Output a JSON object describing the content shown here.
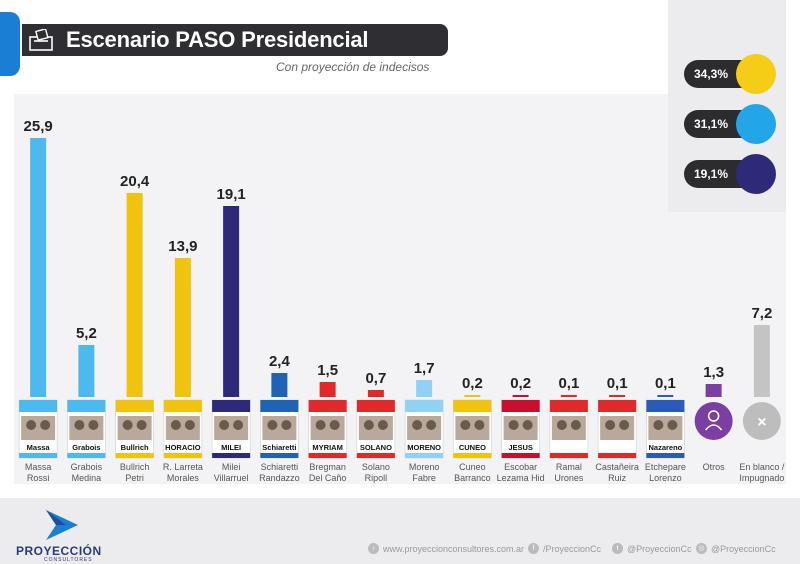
{
  "title": "Escenario PASO Presidencial",
  "subtitle": "Con proyección de indecisos",
  "summary": [
    {
      "value": "34,3%",
      "color": "#f5cc16",
      "logo": "jxc-logo"
    },
    {
      "value": "31,1%",
      "color": "#23a6e8",
      "logo": "up-logo"
    },
    {
      "value": "19,1%",
      "color": "#2d2a7a",
      "logo": "lla-logo"
    }
  ],
  "chart_data": {
    "type": "bar",
    "categories": [
      [
        "Massa",
        "Rossi"
      ],
      [
        "Grabois",
        "Medina"
      ],
      [
        "Bullrich",
        "Petri"
      ],
      [
        "R. Larreta",
        "Morales"
      ],
      [
        "Milei",
        "Villarruel"
      ],
      [
        "Schiaretti",
        "Randazzo"
      ],
      [
        "Bregman",
        "Del Caño"
      ],
      [
        "Solano",
        "Ripoll"
      ],
      [
        "Moreno",
        "Fabre"
      ],
      [
        "Cuneo",
        "Barranco"
      ],
      [
        "Escobar",
        "Lezama Hid"
      ],
      [
        "Ramal",
        "Urones"
      ],
      [
        "Castañeira",
        "Ruiz"
      ],
      [
        "Etchepare",
        "Lorenzo"
      ],
      [
        "Otros",
        ""
      ],
      [
        "En blanco /",
        "Impugnado"
      ]
    ],
    "values": [
      25.9,
      5.2,
      20.4,
      13.9,
      19.1,
      2.4,
      1.5,
      0.7,
      1.7,
      0.2,
      0.2,
      0.1,
      0.1,
      0.1,
      1.3,
      7.2
    ],
    "labels": [
      "25,9",
      "5,2",
      "20,4",
      "13,9",
      "19,1",
      "2,4",
      "1,5",
      "0,7",
      "1,7",
      "0,2",
      "0,2",
      "0,1",
      "0,1",
      "0,1",
      "1,3",
      "7,2"
    ],
    "colors": [
      "#4cb9ef",
      "#4cb9ef",
      "#f0c30e",
      "#f0c30e",
      "#2d2a7a",
      "#1f64b4",
      "#e02a2a",
      "#e02a2a",
      "#8fd2f4",
      "#f0c30e",
      "#c8102e",
      "#e02a2a",
      "#e02a2a",
      "#2b5bb8",
      "#7b3fa3",
      "#c4c4c4"
    ],
    "ballot_names": [
      "Massa",
      "Grabois",
      "Bullrich",
      "HORACIO",
      "MILEI",
      "Schiaretti",
      "MYRIAM",
      "SOLANO",
      "MORENO",
      "CUNEO",
      "JESUS",
      "",
      "",
      "Nazareno",
      "",
      ""
    ],
    "grid": false,
    "legend": "none"
  },
  "footer": {
    "brand": "PROYECCIÓN",
    "brand_sub": "CONSULTORES",
    "website": "www.proyeccionconsultores.com.ar",
    "facebook": "/ProyeccionCc",
    "twitter": "@ProyeccionCc",
    "instagram": "@ProyeccionCc"
  }
}
